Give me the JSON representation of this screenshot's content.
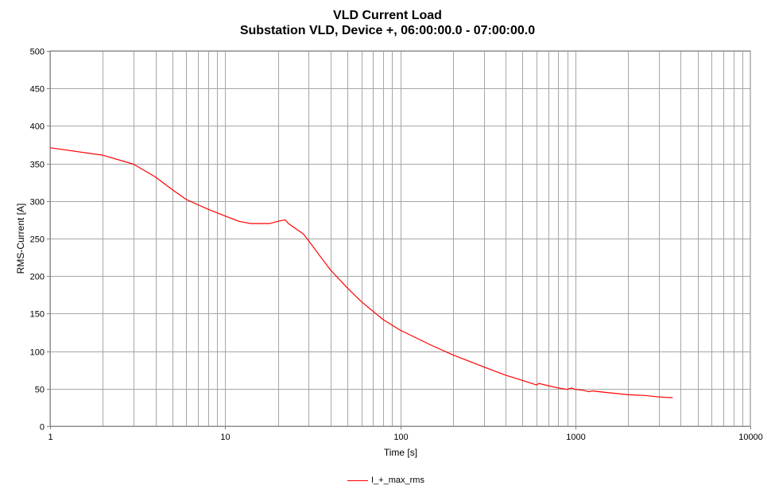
{
  "chart_data": {
    "type": "line",
    "title": "VLD Current Load",
    "subtitle": "Substation VLD, Device +, 06:00:00.0 - 07:00:00.0",
    "xlabel": "Time [s]",
    "ylabel": "RMS-Current  [A]",
    "xscale": "log",
    "xlim": [
      1,
      10000
    ],
    "ylim": [
      0,
      500
    ],
    "xticks": [
      "1",
      "10",
      "100",
      "1000",
      "10000"
    ],
    "yticks": [
      "0",
      "50",
      "100",
      "150",
      "200",
      "250",
      "300",
      "350",
      "400",
      "450",
      "500"
    ],
    "grid": true,
    "legend_position": "bottom-center",
    "series": [
      {
        "name": "I_+_max_rms",
        "color": "#ff0000",
        "x": [
          1,
          2,
          3,
          4,
          5,
          6,
          7,
          8,
          10,
          12,
          14,
          16,
          18,
          20,
          22,
          23,
          25,
          28,
          30,
          35,
          40,
          50,
          60,
          70,
          80,
          100,
          150,
          200,
          300,
          400,
          500,
          600,
          620,
          700,
          800,
          900,
          950,
          1000,
          1100,
          1200,
          1250,
          1500,
          2000,
          2500,
          3000,
          3600
        ],
        "y": [
          371,
          361,
          349,
          332,
          315,
          302,
          295,
          289,
          280,
          273,
          270,
          270,
          270,
          273,
          275,
          270,
          264,
          256,
          247,
          226,
          208,
          184,
          166,
          153,
          142,
          128,
          108,
          95,
          79,
          68,
          61,
          55,
          57,
          54,
          51,
          49,
          51,
          49,
          48,
          46,
          47,
          45,
          42,
          41,
          39,
          38
        ]
      }
    ]
  }
}
